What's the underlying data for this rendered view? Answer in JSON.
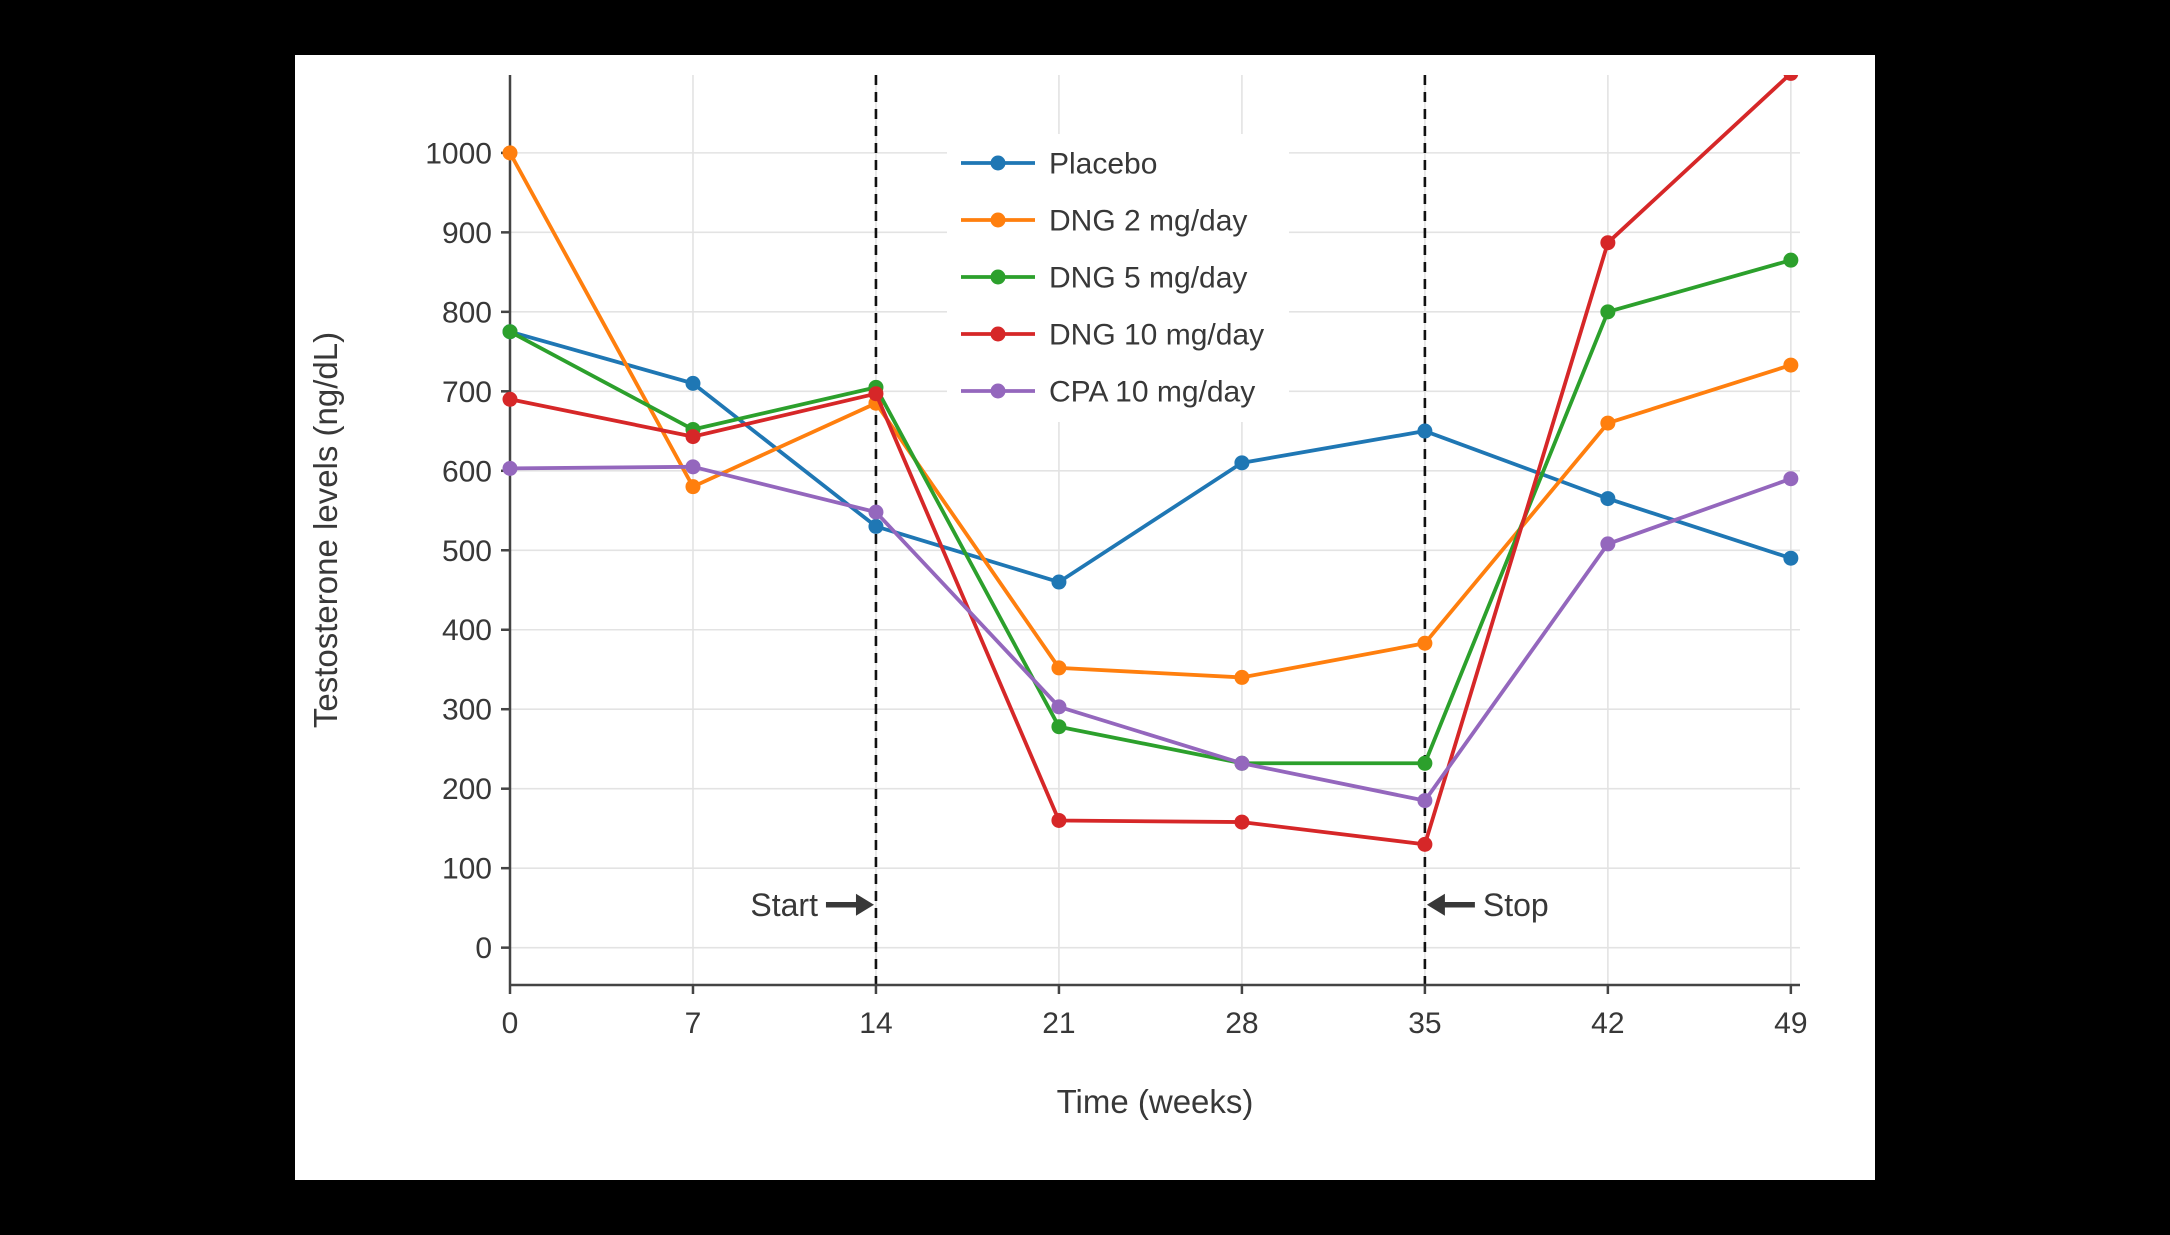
{
  "chart_data": {
    "type": "line",
    "title": "",
    "xlabel": "Time (weeks)",
    "ylabel": "Testosterone levels (ng/dL)",
    "x": [
      0,
      7,
      14,
      21,
      28,
      35,
      42,
      49
    ],
    "x_tick_labels": [
      "0",
      "7",
      "14",
      "21",
      "28",
      "35",
      "42",
      "49"
    ],
    "y_ticks": [
      0,
      100,
      200,
      300,
      400,
      500,
      600,
      700,
      800,
      900,
      1000
    ],
    "xlim": [
      0,
      49.35
    ],
    "ylim": [
      -47,
      1098
    ],
    "grid": true,
    "legend_position": "inside top-center",
    "series": [
      {
        "name": "Placebo",
        "color": "#1f77b4",
        "values": [
          775,
          710,
          530,
          460,
          610,
          650,
          565,
          490
        ]
      },
      {
        "name": "DNG 2 mg/day",
        "color": "#ff7f0e",
        "values": [
          1000,
          580,
          685,
          352,
          340,
          383,
          660,
          733
        ]
      },
      {
        "name": "DNG 5 mg/day",
        "color": "#2ca02c",
        "values": [
          775,
          652,
          705,
          278,
          232,
          232,
          800,
          865
        ]
      },
      {
        "name": "DNG 10 mg/day",
        "color": "#d62728",
        "values": [
          690,
          643,
          697,
          160,
          158,
          130,
          887,
          1100
        ]
      },
      {
        "name": "CPA 10 mg/day",
        "color": "#9467bd",
        "values": [
          603,
          605,
          548,
          303,
          232,
          185,
          508,
          590
        ]
      }
    ],
    "treatment_lines": [
      {
        "week": 14,
        "style": "dashed"
      },
      {
        "week": 35,
        "style": "dashed"
      }
    ],
    "annotations": [
      {
        "label": "Start",
        "week": 14,
        "y": 54,
        "arrow_direction": "right",
        "text_side": "left"
      },
      {
        "label": "Stop",
        "week": 35,
        "y": 54,
        "arrow_direction": "left",
        "text_side": "right"
      }
    ],
    "colors": {
      "grid": "#e3e3e3",
      "axis": "#444444",
      "text": "#383838",
      "dashed_line": "#111111",
      "panel_background": "#ffffff",
      "outer_background": "#000000"
    }
  }
}
